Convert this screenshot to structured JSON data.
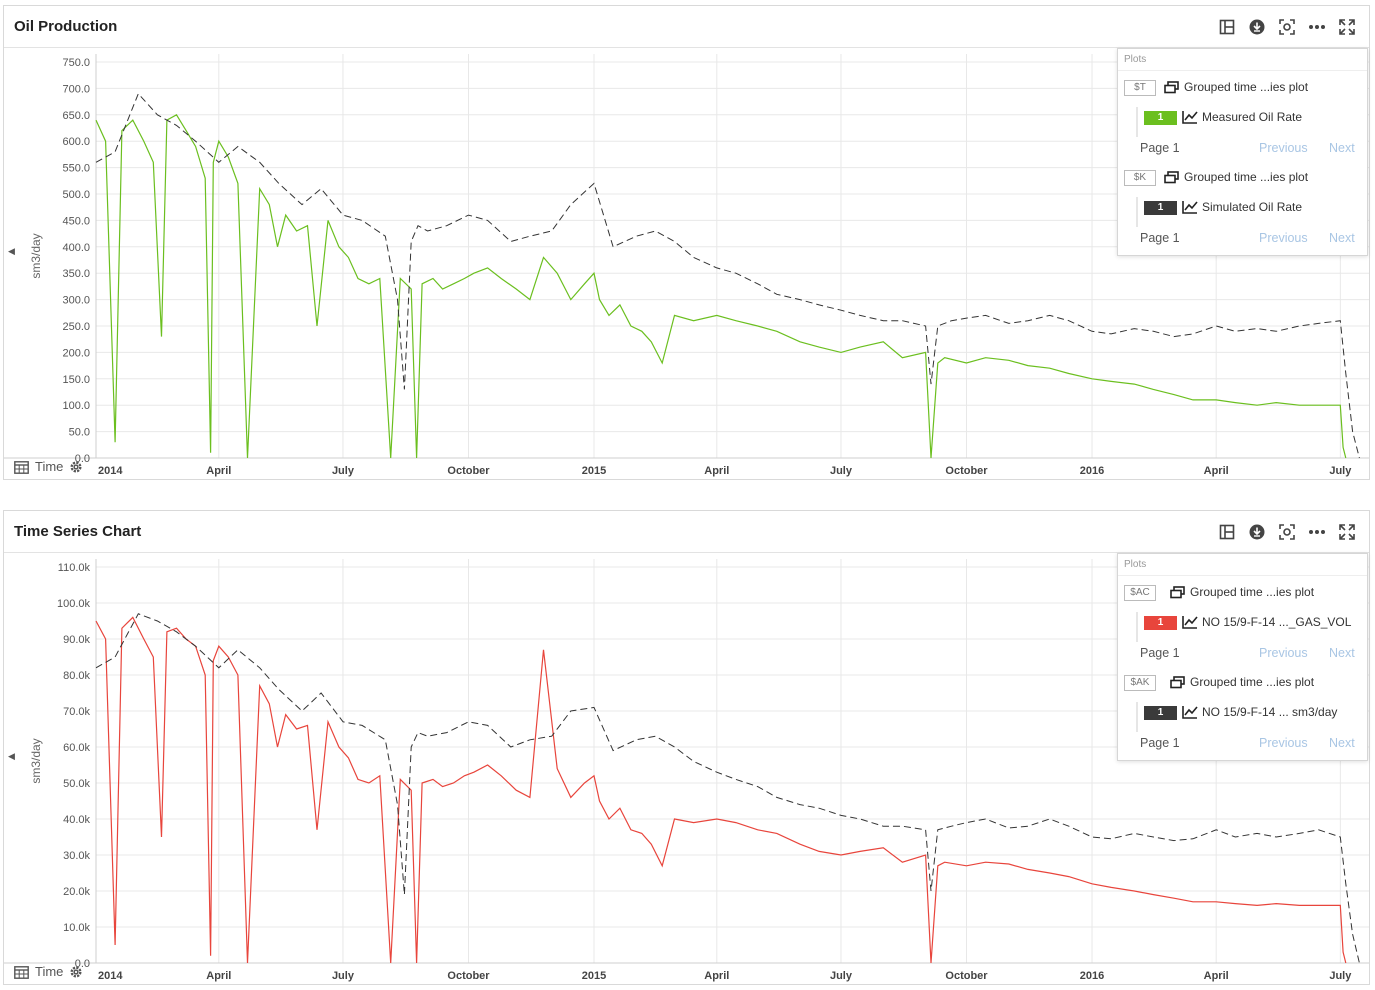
{
  "toolbar_icons": [
    "layout-icon",
    "download-icon",
    "fit-icon",
    "more-icon",
    "expand-icon"
  ],
  "time_label": "Time",
  "x_tick_labels": [
    "2014",
    "April",
    "July",
    "October",
    "2015",
    "April",
    "July",
    "October",
    "2016",
    "April",
    "July"
  ],
  "colors": {
    "oil": "#6bbf1f",
    "gas": "#e8453c",
    "simulated": "#333333",
    "badge_dark": "#3a3a3a",
    "grid": "#e8e8e8"
  },
  "panels": [
    {
      "title": "Oil Production",
      "legend": {
        "heading": "Plots",
        "groups": [
          {
            "tag": "$T",
            "label": "Grouped time ...ies plot",
            "series": {
              "badge": "1",
              "badge_color": "#6bbf1f",
              "label": "Measured Oil Rate"
            },
            "page": "Page 1",
            "previous": "Previous",
            "next": "Next"
          },
          {
            "tag": "$K",
            "label": "Grouped time ...ies plot",
            "series": {
              "badge": "1",
              "badge_color": "#3a3a3a",
              "label": "Simulated Oil Rate"
            },
            "page": "Page 1",
            "previous": "Previous",
            "next": "Next"
          }
        ]
      }
    },
    {
      "title": "Time Series Chart",
      "legend": {
        "heading": "Plots",
        "groups": [
          {
            "tag": "$AC",
            "label": "Grouped time ...ies plot",
            "series": {
              "badge": "1",
              "badge_color": "#e8453c",
              "label": "NO 15/9-F-14 ..._GAS_VOL"
            },
            "page": "Page 1",
            "previous": "Previous",
            "next": "Next"
          },
          {
            "tag": "$AK",
            "label": "Grouped time ...ies plot",
            "series": {
              "badge": "1",
              "badge_color": "#3a3a3a",
              "label": "NO 15/9-F-14 ... sm3/day"
            },
            "page": "Page 1",
            "previous": "Previous",
            "next": "Next"
          }
        ]
      }
    }
  ],
  "chart_data": [
    {
      "type": "line",
      "ylabel": "sm3/day",
      "ylim": [
        0,
        750
      ],
      "y_ticks": [
        0,
        50,
        100,
        150,
        200,
        250,
        300,
        350,
        400,
        450,
        500,
        550,
        600,
        650,
        700,
        750
      ],
      "y_tick_labels": [
        "0.0",
        "50.0",
        "100.0",
        "150.0",
        "200.0",
        "250.0",
        "300.0",
        "350.0",
        "400.0",
        "450.0",
        "500.0",
        "550.0",
        "600.0",
        "650.0",
        "700.0",
        "750.0"
      ],
      "x_ticks": [
        "2014-01-01",
        "2014-04-01",
        "2014-07-01",
        "2014-10-01",
        "2015-01-01",
        "2015-04-01",
        "2015-07-01",
        "2015-10-01",
        "2016-01-01",
        "2016-04-01",
        "2016-07-01"
      ],
      "xlim": [
        "2014-01-01",
        "2016-07-22"
      ],
      "grid": true,
      "legend_position": "top-right",
      "series": [
        {
          "name": "Measured Oil Rate",
          "color": "#6bbf1f",
          "style": "solid",
          "x": [
            "2014-01-01",
            "2014-01-08",
            "2014-01-15",
            "2014-01-20",
            "2014-01-28",
            "2014-02-05",
            "2014-02-12",
            "2014-02-18",
            "2014-02-22",
            "2014-03-01",
            "2014-03-08",
            "2014-03-15",
            "2014-03-22",
            "2014-03-26",
            "2014-03-28",
            "2014-04-01",
            "2014-04-08",
            "2014-04-15",
            "2014-04-22",
            "2014-05-01",
            "2014-05-08",
            "2014-05-14",
            "2014-05-20",
            "2014-05-28",
            "2014-06-05",
            "2014-06-12",
            "2014-06-20",
            "2014-06-28",
            "2014-07-05",
            "2014-07-12",
            "2014-07-20",
            "2014-07-28",
            "2014-08-05",
            "2014-08-12",
            "2014-08-20",
            "2014-08-24",
            "2014-08-28",
            "2014-09-05",
            "2014-09-12",
            "2014-09-20",
            "2014-09-28",
            "2014-10-05",
            "2014-10-15",
            "2014-10-25",
            "2014-11-05",
            "2014-11-15",
            "2014-11-25",
            "2014-12-05",
            "2014-12-15",
            "2014-12-25",
            "2015-01-01",
            "2015-01-05",
            "2015-01-12",
            "2015-01-20",
            "2015-01-28",
            "2015-02-05",
            "2015-02-12",
            "2015-02-20",
            "2015-03-01",
            "2015-03-15",
            "2015-04-01",
            "2015-04-15",
            "2015-05-01",
            "2015-05-15",
            "2015-06-01",
            "2015-06-15",
            "2015-07-01",
            "2015-07-15",
            "2015-08-01",
            "2015-08-15",
            "2015-09-01",
            "2015-09-05",
            "2015-09-10",
            "2015-09-15",
            "2015-10-01",
            "2015-10-15",
            "2015-11-01",
            "2015-11-15",
            "2015-12-01",
            "2015-12-15",
            "2016-01-01",
            "2016-01-15",
            "2016-02-01",
            "2016-02-15",
            "2016-03-01",
            "2016-03-15",
            "2016-04-01",
            "2016-04-15",
            "2016-05-01",
            "2016-05-15",
            "2016-06-01",
            "2016-06-15",
            "2016-07-01",
            "2016-07-03",
            "2016-07-05"
          ],
          "y": [
            640,
            600,
            30,
            620,
            640,
            600,
            560,
            230,
            640,
            650,
            620,
            590,
            530,
            10,
            560,
            600,
            570,
            520,
            0,
            510,
            480,
            400,
            460,
            430,
            440,
            250,
            450,
            400,
            380,
            340,
            330,
            340,
            0,
            340,
            320,
            0,
            330,
            340,
            320,
            330,
            340,
            350,
            360,
            340,
            320,
            300,
            380,
            350,
            300,
            330,
            350,
            300,
            270,
            290,
            250,
            240,
            220,
            180,
            270,
            260,
            270,
            260,
            250,
            240,
            220,
            210,
            200,
            210,
            220,
            190,
            200,
            0,
            180,
            190,
            180,
            190,
            185,
            175,
            170,
            160,
            150,
            145,
            140,
            130,
            120,
            110,
            110,
            105,
            100,
            105,
            100,
            100,
            100,
            20,
            0
          ]
        },
        {
          "name": "Simulated Oil Rate",
          "color": "#333333",
          "style": "dashed",
          "x": [
            "2014-01-01",
            "2014-01-15",
            "2014-02-01",
            "2014-02-15",
            "2014-03-01",
            "2014-03-15",
            "2014-04-01",
            "2014-04-15",
            "2014-05-01",
            "2014-05-15",
            "2014-06-01",
            "2014-06-15",
            "2014-07-01",
            "2014-07-15",
            "2014-08-01",
            "2014-08-10",
            "2014-08-15",
            "2014-08-20",
            "2014-08-25",
            "2014-09-01",
            "2014-09-15",
            "2014-10-01",
            "2014-10-15",
            "2014-11-01",
            "2014-11-15",
            "2014-12-01",
            "2014-12-15",
            "2015-01-01",
            "2015-01-15",
            "2015-02-01",
            "2015-02-15",
            "2015-03-01",
            "2015-03-15",
            "2015-04-01",
            "2015-04-15",
            "2015-05-01",
            "2015-05-15",
            "2015-06-01",
            "2015-06-15",
            "2015-07-01",
            "2015-07-15",
            "2015-08-01",
            "2015-08-15",
            "2015-09-01",
            "2015-09-05",
            "2015-09-10",
            "2015-09-20",
            "2015-10-01",
            "2015-10-15",
            "2015-11-01",
            "2015-11-15",
            "2015-12-01",
            "2015-12-15",
            "2016-01-01",
            "2016-01-15",
            "2016-02-01",
            "2016-02-15",
            "2016-03-01",
            "2016-03-15",
            "2016-04-01",
            "2016-04-15",
            "2016-05-01",
            "2016-05-15",
            "2016-06-01",
            "2016-06-15",
            "2016-07-01",
            "2016-07-05",
            "2016-07-10",
            "2016-07-15"
          ],
          "y": [
            560,
            580,
            690,
            650,
            630,
            600,
            560,
            590,
            560,
            520,
            480,
            510,
            460,
            450,
            420,
            300,
            130,
            410,
            440,
            430,
            440,
            460,
            450,
            410,
            420,
            430,
            480,
            520,
            400,
            420,
            430,
            410,
            380,
            360,
            350,
            330,
            310,
            300,
            290,
            280,
            270,
            260,
            260,
            250,
            140,
            250,
            260,
            265,
            270,
            255,
            260,
            270,
            260,
            240,
            235,
            245,
            240,
            230,
            235,
            250,
            240,
            245,
            240,
            250,
            255,
            260,
            160,
            50,
            0
          ]
        }
      ]
    },
    {
      "type": "line",
      "ylabel": "sm3/day",
      "ylim": [
        0,
        110000
      ],
      "y_ticks": [
        0,
        10000,
        20000,
        30000,
        40000,
        50000,
        60000,
        70000,
        80000,
        90000,
        100000,
        110000
      ],
      "y_tick_labels": [
        "0.0",
        "10.0k",
        "20.0k",
        "30.0k",
        "40.0k",
        "50.0k",
        "60.0k",
        "70.0k",
        "80.0k",
        "90.0k",
        "100.0k",
        "110.0k"
      ],
      "x_ticks": [
        "2014-01-01",
        "2014-04-01",
        "2014-07-01",
        "2014-10-01",
        "2015-01-01",
        "2015-04-01",
        "2015-07-01",
        "2015-10-01",
        "2016-01-01",
        "2016-04-01",
        "2016-07-01"
      ],
      "xlim": [
        "2014-01-01",
        "2016-07-22"
      ],
      "grid": true,
      "legend_position": "top-right",
      "series": [
        {
          "name": "NO 15/9-F-14 ..._GAS_VOL",
          "color": "#e8453c",
          "style": "solid",
          "x": [
            "2014-01-01",
            "2014-01-08",
            "2014-01-15",
            "2014-01-20",
            "2014-01-28",
            "2014-02-05",
            "2014-02-12",
            "2014-02-18",
            "2014-02-22",
            "2014-03-01",
            "2014-03-08",
            "2014-03-15",
            "2014-03-22",
            "2014-03-26",
            "2014-03-28",
            "2014-04-01",
            "2014-04-08",
            "2014-04-15",
            "2014-04-22",
            "2014-05-01",
            "2014-05-08",
            "2014-05-14",
            "2014-05-20",
            "2014-05-28",
            "2014-06-05",
            "2014-06-12",
            "2014-06-20",
            "2014-06-28",
            "2014-07-05",
            "2014-07-12",
            "2014-07-20",
            "2014-07-28",
            "2014-08-05",
            "2014-08-12",
            "2014-08-20",
            "2014-08-24",
            "2014-08-28",
            "2014-09-05",
            "2014-09-12",
            "2014-09-20",
            "2014-09-28",
            "2014-10-05",
            "2014-10-15",
            "2014-10-25",
            "2014-11-05",
            "2014-11-15",
            "2014-11-25",
            "2014-12-05",
            "2014-12-15",
            "2014-12-25",
            "2015-01-01",
            "2015-01-05",
            "2015-01-12",
            "2015-01-20",
            "2015-01-28",
            "2015-02-05",
            "2015-02-12",
            "2015-02-20",
            "2015-03-01",
            "2015-03-15",
            "2015-04-01",
            "2015-04-15",
            "2015-05-01",
            "2015-05-15",
            "2015-06-01",
            "2015-06-15",
            "2015-07-01",
            "2015-07-15",
            "2015-08-01",
            "2015-08-15",
            "2015-09-01",
            "2015-09-05",
            "2015-09-10",
            "2015-09-15",
            "2015-10-01",
            "2015-10-15",
            "2015-11-01",
            "2015-11-15",
            "2015-12-01",
            "2015-12-15",
            "2016-01-01",
            "2016-01-15",
            "2016-02-01",
            "2016-02-15",
            "2016-03-01",
            "2016-03-15",
            "2016-04-01",
            "2016-04-15",
            "2016-05-01",
            "2016-05-15",
            "2016-06-01",
            "2016-06-15",
            "2016-07-01",
            "2016-07-03",
            "2016-07-05"
          ],
          "y": [
            95000,
            90000,
            5000,
            93000,
            96000,
            90000,
            85000,
            35000,
            92000,
            93000,
            90000,
            88000,
            80000,
            2000,
            84000,
            88000,
            85000,
            80000,
            0,
            77000,
            72000,
            60000,
            69000,
            65000,
            66000,
            37000,
            67000,
            60000,
            57000,
            51000,
            50000,
            52000,
            0,
            51000,
            48000,
            0,
            50000,
            51000,
            49000,
            50000,
            52000,
            53000,
            55000,
            52000,
            48000,
            46000,
            87000,
            54000,
            46000,
            50000,
            52000,
            45000,
            40000,
            43000,
            37000,
            36000,
            33000,
            27000,
            40000,
            39000,
            40000,
            39000,
            37000,
            36000,
            33000,
            31000,
            30000,
            31000,
            32000,
            28000,
            30000,
            0,
            27000,
            28000,
            27000,
            28000,
            27500,
            26000,
            25000,
            24000,
            22000,
            21000,
            20000,
            19000,
            18000,
            17000,
            17000,
            16500,
            16000,
            16500,
            16000,
            16000,
            16000,
            3000,
            0
          ]
        },
        {
          "name": "NO 15/9-F-14 ... sm3/day",
          "color": "#333333",
          "style": "dashed",
          "x": [
            "2014-01-01",
            "2014-01-15",
            "2014-02-01",
            "2014-02-15",
            "2014-03-01",
            "2014-03-15",
            "2014-04-01",
            "2014-04-15",
            "2014-05-01",
            "2014-05-15",
            "2014-06-01",
            "2014-06-15",
            "2014-07-01",
            "2014-07-15",
            "2014-08-01",
            "2014-08-10",
            "2014-08-15",
            "2014-08-20",
            "2014-08-25",
            "2014-09-01",
            "2014-09-15",
            "2014-10-01",
            "2014-10-15",
            "2014-11-01",
            "2014-11-15",
            "2014-12-01",
            "2014-12-15",
            "2015-01-01",
            "2015-01-15",
            "2015-02-01",
            "2015-02-15",
            "2015-03-01",
            "2015-03-15",
            "2015-04-01",
            "2015-04-15",
            "2015-05-01",
            "2015-05-15",
            "2015-06-01",
            "2015-06-15",
            "2015-07-01",
            "2015-07-15",
            "2015-08-01",
            "2015-08-15",
            "2015-09-01",
            "2015-09-05",
            "2015-09-10",
            "2015-09-20",
            "2015-10-01",
            "2015-10-15",
            "2015-11-01",
            "2015-11-15",
            "2015-12-01",
            "2015-12-15",
            "2016-01-01",
            "2016-01-15",
            "2016-02-01",
            "2016-02-15",
            "2016-03-01",
            "2016-03-15",
            "2016-04-01",
            "2016-04-15",
            "2016-05-01",
            "2016-05-15",
            "2016-06-01",
            "2016-06-15",
            "2016-07-01",
            "2016-07-05",
            "2016-07-10",
            "2016-07-15"
          ],
          "y": [
            82000,
            85000,
            97000,
            95000,
            92000,
            88000,
            82000,
            87000,
            82000,
            76000,
            70000,
            75000,
            67000,
            66000,
            62000,
            44000,
            19000,
            60000,
            64000,
            63000,
            64000,
            67000,
            66000,
            60000,
            62000,
            63000,
            70000,
            71000,
            59000,
            62000,
            63000,
            60000,
            56000,
            53000,
            51000,
            49000,
            46000,
            44000,
            43000,
            41000,
            40000,
            38000,
            38000,
            37000,
            20000,
            37000,
            38000,
            39000,
            40000,
            37500,
            38000,
            40000,
            38000,
            35000,
            34500,
            36000,
            35000,
            34000,
            34500,
            37000,
            35000,
            36000,
            35000,
            36000,
            37000,
            35000,
            22000,
            8000,
            0
          ]
        }
      ]
    }
  ]
}
